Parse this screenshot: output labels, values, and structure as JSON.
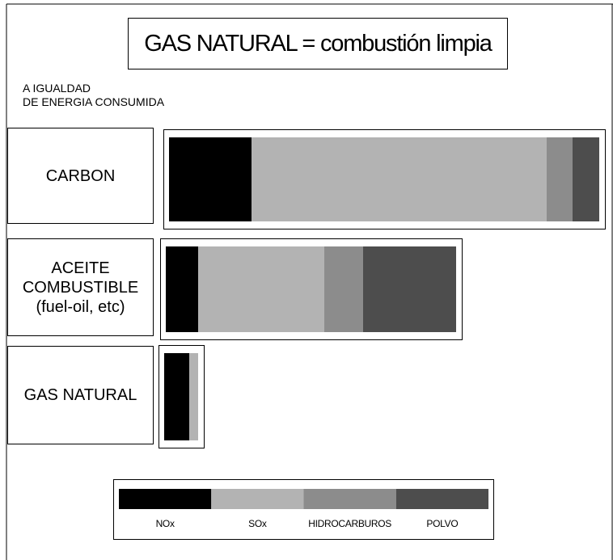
{
  "chart_data": {
    "type": "stacked-bar",
    "title": "GAS NATURAL = combustión limpia",
    "subtitle": "A IGUALDAD\nDE ENERGIA CONSUMIDA",
    "orientation": "horizontal",
    "categories": [
      "CARBON",
      "ACEITE\nCOMBUSTIBLE\n(fuel-oil, etc)",
      "GAS NATURAL"
    ],
    "series": [
      {
        "name": "NOx",
        "color": "#000000",
        "values": [
          102,
          40,
          31
        ]
      },
      {
        "name": "SOx",
        "color": "#b3b3b3",
        "values": [
          365,
          156,
          11
        ]
      },
      {
        "name": "HIDROCARBUROS",
        "color": "#8c8c8c",
        "values": [
          32,
          48,
          0
        ]
      },
      {
        "name": "POLVO",
        "color": "#4d4d4d",
        "values": [
          33,
          115,
          0
        ]
      }
    ],
    "legend": "bottom"
  }
}
